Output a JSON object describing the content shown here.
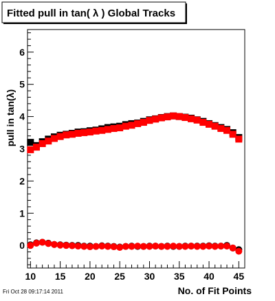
{
  "footer": {
    "timestamp": "Fri Oct 28 09:17:14 2011"
  },
  "colors": {
    "background": "#ffffff",
    "axis": "#000000",
    "series_black": "#000000",
    "series_red": "#ff0000"
  },
  "chart_data": {
    "type": "scatter",
    "title": "Fitted pull in tan( λ )  Global Tracks",
    "xlabel": "No. of Fit Points",
    "ylabel": "pull in tan(λ)",
    "xlim": [
      9.5,
      46
    ],
    "ylim": [
      -0.7,
      6.7
    ],
    "xticks": [
      10,
      15,
      20,
      25,
      30,
      35,
      40,
      45
    ],
    "yticks": [
      0,
      1,
      2,
      3,
      4,
      5,
      6
    ],
    "grid": false,
    "legend": "none",
    "x": [
      10,
      11,
      12,
      13,
      14,
      15,
      16,
      17,
      18,
      19,
      20,
      21,
      22,
      23,
      24,
      25,
      26,
      27,
      28,
      29,
      30,
      31,
      32,
      33,
      34,
      35,
      36,
      37,
      38,
      39,
      40,
      41,
      42,
      43,
      44,
      45
    ],
    "series": [
      {
        "color": "#000000",
        "marker": "square",
        "values": [
          3.2,
          3.1,
          3.22,
          3.3,
          3.37,
          3.42,
          3.45,
          3.48,
          3.52,
          3.53,
          3.56,
          3.58,
          3.62,
          3.66,
          3.68,
          3.7,
          3.75,
          3.78,
          3.8,
          3.85,
          3.9,
          3.93,
          3.97,
          4.0,
          4.02,
          4.0,
          3.98,
          3.95,
          3.9,
          3.85,
          3.78,
          3.72,
          3.66,
          3.6,
          3.5,
          3.35
        ]
      },
      {
        "color": "#ff0000",
        "marker": "square",
        "values": [
          2.97,
          3.05,
          3.16,
          3.24,
          3.32,
          3.38,
          3.43,
          3.45,
          3.48,
          3.5,
          3.52,
          3.55,
          3.57,
          3.6,
          3.63,
          3.65,
          3.7,
          3.73,
          3.78,
          3.82,
          3.88,
          3.92,
          3.96,
          3.99,
          4.02,
          4.0,
          3.97,
          3.93,
          3.89,
          3.82,
          3.76,
          3.7,
          3.63,
          3.57,
          3.45,
          3.3
        ]
      },
      {
        "color": "#000000",
        "marker": "circle",
        "values": [
          0.02,
          0.08,
          0.1,
          0.07,
          0.03,
          0.02,
          0.01,
          0.0,
          0.0,
          -0.02,
          -0.02,
          -0.03,
          -0.01,
          -0.02,
          -0.03,
          -0.05,
          -0.03,
          -0.02,
          -0.03,
          -0.03,
          -0.02,
          -0.02,
          -0.03,
          -0.02,
          -0.03,
          -0.03,
          -0.02,
          -0.02,
          -0.02,
          -0.02,
          -0.01,
          -0.02,
          -0.02,
          0.0,
          -0.08,
          -0.13
        ]
      },
      {
        "color": "#ff0000",
        "marker": "circle",
        "values": [
          0.0,
          0.07,
          0.1,
          0.06,
          0.03,
          0.01,
          0.0,
          -0.01,
          -0.02,
          -0.03,
          -0.04,
          -0.03,
          -0.02,
          -0.03,
          -0.04,
          -0.06,
          -0.03,
          -0.03,
          -0.02,
          -0.03,
          -0.03,
          -0.02,
          -0.03,
          -0.03,
          -0.02,
          -0.03,
          -0.03,
          -0.02,
          -0.03,
          -0.03,
          -0.02,
          -0.03,
          -0.02,
          -0.02,
          -0.08,
          -0.18
        ]
      }
    ]
  }
}
